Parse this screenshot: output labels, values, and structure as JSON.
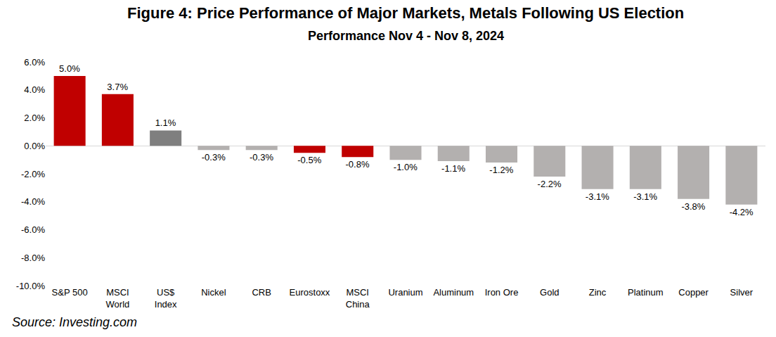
{
  "chart_data": {
    "type": "bar",
    "title": "Figure 4: Price Performance of Major Markets, Metals Following US Election",
    "subtitle": "Performance Nov 4 - Nov 8, 2024",
    "source": "Source: Investing.com",
    "categories": [
      "S&P 500",
      "MSCI World",
      "US$ Index",
      "Nickel",
      "CRB",
      "Eurostoxx",
      "MSCI China",
      "Uranium",
      "Aluminum",
      "Iron Ore",
      "Gold",
      "Zinc",
      "Platinum",
      "Copper",
      "Silver"
    ],
    "values": [
      5.0,
      3.7,
      1.1,
      -0.3,
      -0.3,
      -0.5,
      -0.8,
      -1.0,
      -1.1,
      -1.2,
      -2.2,
      -3.1,
      -3.1,
      -3.8,
      -4.2
    ],
    "value_labels": [
      "5.0%",
      "3.7%",
      "1.1%",
      "-0.3%",
      "-0.3%",
      "-0.5%",
      "-0.8%",
      "-1.0%",
      "-1.1%",
      "-1.2%",
      "-2.2%",
      "-3.1%",
      "-3.1%",
      "-3.8%",
      "-4.2%"
    ],
    "colors": [
      "#c00000",
      "#c00000",
      "#7f7f7f",
      "#b3b0af",
      "#b3b0af",
      "#c00000",
      "#c00000",
      "#b3b0af",
      "#b3b0af",
      "#b3b0af",
      "#b3b0af",
      "#b3b0af",
      "#b3b0af",
      "#b3b0af",
      "#b3b0af"
    ],
    "ylim": [
      -10,
      6
    ],
    "yticks": [
      {
        "value": -10,
        "label": "-10.0%"
      },
      {
        "value": -8,
        "label": "-8.0%"
      },
      {
        "value": -6,
        "label": "-6.0%"
      },
      {
        "value": -4,
        "label": "-4.0%"
      },
      {
        "value": -2,
        "label": "-2.0%"
      },
      {
        "value": 0,
        "label": "0.0%"
      },
      {
        "value": 2,
        "label": "2.0%"
      },
      {
        "value": 4,
        "label": "4.0%"
      },
      {
        "value": 6,
        "label": "6.0%"
      }
    ],
    "grid": false,
    "data_labels": true
  }
}
